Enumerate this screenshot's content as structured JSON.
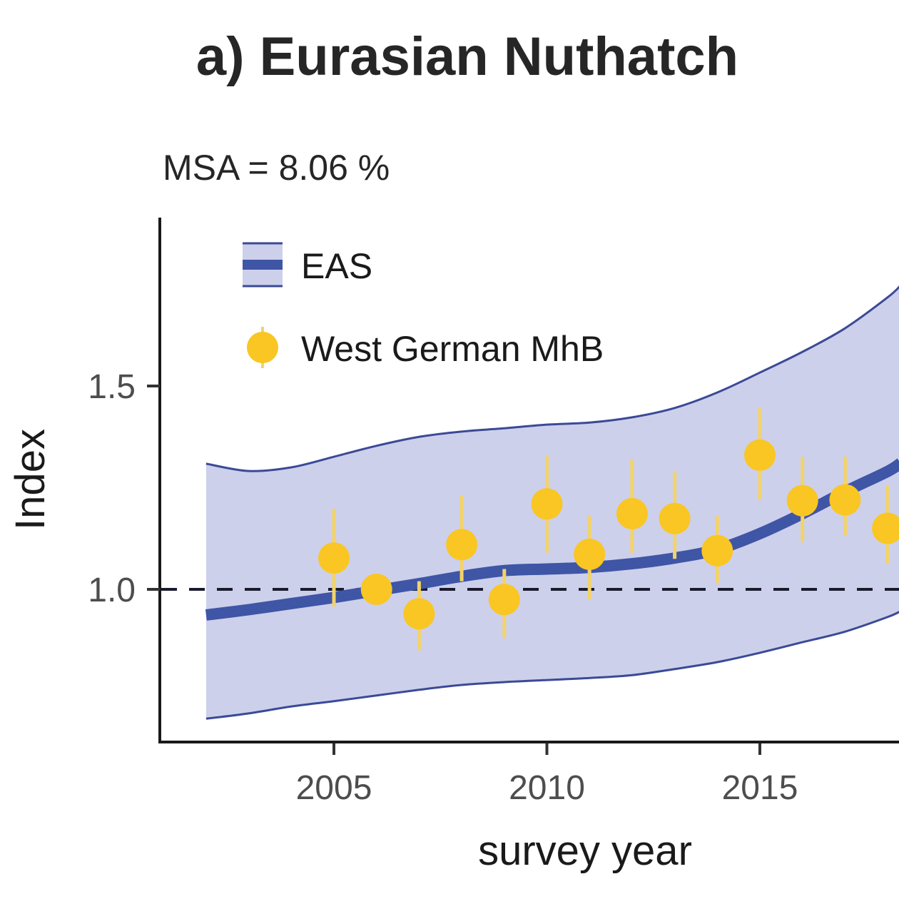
{
  "chart_data": {
    "type": "line",
    "title": "a) Eurasian Nuthatch",
    "subtitle": "MSA = 8.06 %",
    "xlabel": "survey year",
    "ylabel": "Index",
    "xlim": [
      2000.85,
      2018.3
    ],
    "ylim": [
      0.62,
      1.89
    ],
    "xticks": [
      2005,
      2010,
      2015
    ],
    "xtick_labels": [
      "2005",
      "2010",
      "2015"
    ],
    "yticks": [
      1.0,
      1.5
    ],
    "ytick_labels": [
      "1.0",
      "1.5"
    ],
    "reference_line": {
      "y": 1.0,
      "style": "dashed"
    },
    "grid": false,
    "legend": {
      "position": "top-left",
      "entries": [
        {
          "label": "EAS",
          "kind": "ribbon-line"
        },
        {
          "label": "West German MhB",
          "kind": "point-errorbar"
        }
      ]
    },
    "colors": {
      "ribbon_fill": "#cdd0eb",
      "ribbon_edge": "#3b4a96",
      "trend_line": "#3f55a6",
      "points": "#f9c623",
      "errorbars": "#f2d36a",
      "reference": "#1a1a2e",
      "axis": "#1a1a1a"
    },
    "series": [
      {
        "name": "EAS",
        "kind": "trend-with-ribbon",
        "x": [
          2002,
          2003,
          2004,
          2005,
          2006,
          2007,
          2008,
          2009,
          2010,
          2011,
          2012,
          2013,
          2014,
          2015,
          2016,
          2017,
          2018,
          2018.3
        ],
        "y": [
          0.937,
          0.95,
          0.965,
          0.98,
          0.997,
          1.014,
          1.032,
          1.046,
          1.05,
          1.054,
          1.063,
          1.077,
          1.098,
          1.137,
          1.186,
          1.24,
          1.29,
          1.31
        ],
        "upper": [
          1.309,
          1.291,
          1.3,
          1.326,
          1.353,
          1.375,
          1.388,
          1.396,
          1.405,
          1.41,
          1.423,
          1.446,
          1.484,
          1.533,
          1.584,
          1.642,
          1.718,
          1.747
        ],
        "lower": [
          0.682,
          0.695,
          0.712,
          0.725,
          0.739,
          0.753,
          0.765,
          0.772,
          0.777,
          0.782,
          0.789,
          0.804,
          0.821,
          0.844,
          0.87,
          0.896,
          0.932,
          0.946
        ]
      },
      {
        "name": "West German MhB",
        "kind": "points-with-errorbars",
        "x": [
          2005,
          2006,
          2007,
          2008,
          2009,
          2010,
          2011,
          2012,
          2013,
          2014,
          2015,
          2016,
          2017,
          2018
        ],
        "y": [
          1.077,
          1.0,
          0.94,
          1.11,
          0.975,
          1.21,
          1.086,
          1.186,
          1.174,
          1.095,
          1.33,
          1.218,
          1.22,
          1.15
        ],
        "ymin": [
          0.958,
          0.98,
          0.85,
          1.02,
          0.88,
          1.09,
          0.975,
          1.09,
          1.075,
          1.016,
          1.22,
          1.116,
          1.133,
          1.063
        ],
        "ymax": [
          1.198,
          1.02,
          1.02,
          1.23,
          1.05,
          1.33,
          1.18,
          1.32,
          1.29,
          1.18,
          1.446,
          1.326,
          1.326,
          1.256
        ]
      }
    ]
  }
}
